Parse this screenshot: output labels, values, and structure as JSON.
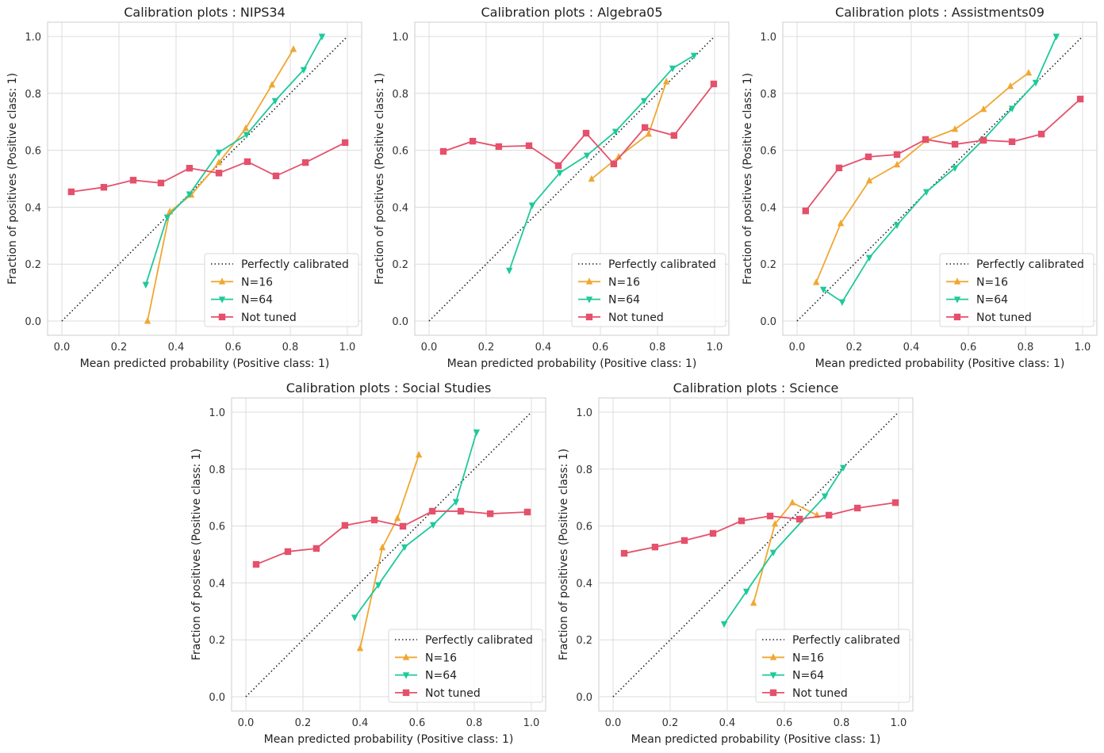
{
  "colors": {
    "perfect": "#222222",
    "n16": "#f0a732",
    "n64": "#1ec99b",
    "not_tuned": "#e5506b",
    "grid": "#dcdcdc",
    "frame": "#cccccc"
  },
  "chart_data": [
    {
      "type": "line",
      "title": "Calibration plots : NIPS34",
      "xlabel": "Mean predicted probability (Positive class: 1)",
      "ylabel": "Fraction of positives (Positive class: 1)",
      "xlim": [
        -0.05,
        1.05
      ],
      "ylim": [
        -0.05,
        1.05
      ],
      "xticks": [
        "0.0",
        "0.2",
        "0.4",
        "0.6",
        "0.8",
        "1.0"
      ],
      "yticks": [
        "0.0",
        "0.2",
        "0.4",
        "0.6",
        "0.8",
        "1.0"
      ],
      "grid": true,
      "legend": "lower right",
      "series": [
        {
          "name": "Perfectly calibrated",
          "style": "dotted",
          "x": [
            0,
            1
          ],
          "y": [
            0,
            1
          ]
        },
        {
          "name": "N=16",
          "marker": "triangle-up",
          "x": [
            0.3,
            0.378,
            0.453,
            0.55,
            0.644,
            0.736,
            0.811
          ],
          "y": [
            0.0,
            0.384,
            0.443,
            0.557,
            0.677,
            0.83,
            0.955
          ]
        },
        {
          "name": "N=64",
          "marker": "triangle-down",
          "x": [
            0.294,
            0.369,
            0.447,
            0.55,
            0.647,
            0.747,
            0.847,
            0.911
          ],
          "y": [
            0.128,
            0.365,
            0.446,
            0.593,
            0.655,
            0.774,
            0.883,
            1.0
          ]
        },
        {
          "name": "Not tuned",
          "marker": "square",
          "x": [
            0.033,
            0.147,
            0.25,
            0.347,
            0.447,
            0.55,
            0.65,
            0.75,
            0.853,
            0.992
          ],
          "y": [
            0.454,
            0.47,
            0.495,
            0.485,
            0.537,
            0.52,
            0.56,
            0.51,
            0.557,
            0.627
          ]
        }
      ]
    },
    {
      "type": "line",
      "title": "Calibration plots : Algebra05",
      "xlabel": "Mean predicted probability (Positive class: 1)",
      "ylabel": "Fraction of positives (Positive class: 1)",
      "xlim": [
        -0.05,
        1.05
      ],
      "ylim": [
        -0.05,
        1.05
      ],
      "xticks": [
        "0.0",
        "0.2",
        "0.4",
        "0.6",
        "0.8",
        "1.0"
      ],
      "yticks": [
        "0.0",
        "0.2",
        "0.4",
        "0.6",
        "0.8",
        "1.0"
      ],
      "grid": true,
      "legend": "lower right",
      "series": [
        {
          "name": "Perfectly calibrated",
          "style": "dotted",
          "x": [
            0,
            1
          ],
          "y": [
            0,
            1
          ]
        },
        {
          "name": "N=16",
          "marker": "triangle-up",
          "x": [
            0.569,
            0.664,
            0.769,
            0.831
          ],
          "y": [
            0.499,
            0.577,
            0.657,
            0.841
          ]
        },
        {
          "name": "N=64",
          "marker": "triangle-down",
          "x": [
            0.281,
            0.361,
            0.458,
            0.553,
            0.653,
            0.753,
            0.853,
            0.928
          ],
          "y": [
            0.178,
            0.407,
            0.521,
            0.582,
            0.666,
            0.774,
            0.888,
            0.933
          ]
        },
        {
          "name": "Not tuned",
          "marker": "square",
          "x": [
            0.05,
            0.153,
            0.244,
            0.35,
            0.453,
            0.55,
            0.647,
            0.756,
            0.858,
            0.997
          ],
          "y": [
            0.596,
            0.632,
            0.613,
            0.616,
            0.546,
            0.66,
            0.552,
            0.68,
            0.652,
            0.833
          ]
        }
      ]
    },
    {
      "type": "line",
      "title": "Calibration plots : Assistments09",
      "xlabel": "Mean predicted probability (Positive class: 1)",
      "ylabel": "Fraction of positives (Positive class: 1)",
      "xlim": [
        -0.05,
        1.05
      ],
      "ylim": [
        -0.05,
        1.05
      ],
      "xticks": [
        "0.0",
        "0.2",
        "0.4",
        "0.6",
        "0.8",
        "1.0"
      ],
      "yticks": [
        "0.0",
        "0.2",
        "0.4",
        "0.6",
        "0.8",
        "1.0"
      ],
      "grid": true,
      "legend": "lower right",
      "series": [
        {
          "name": "Perfectly calibrated",
          "style": "dotted",
          "x": [
            0,
            1
          ],
          "y": [
            0,
            1
          ]
        },
        {
          "name": "N=16",
          "marker": "triangle-up",
          "x": [
            0.067,
            0.153,
            0.253,
            0.35,
            0.453,
            0.553,
            0.653,
            0.747,
            0.811
          ],
          "y": [
            0.136,
            0.343,
            0.493,
            0.549,
            0.635,
            0.674,
            0.744,
            0.825,
            0.872
          ]
        },
        {
          "name": "N=64",
          "marker": "triangle-down",
          "x": [
            0.092,
            0.158,
            0.253,
            0.35,
            0.453,
            0.553,
            0.653,
            0.753,
            0.836,
            0.908
          ],
          "y": [
            0.111,
            0.067,
            0.223,
            0.337,
            0.454,
            0.538,
            0.638,
            0.747,
            0.838,
            1.0
          ]
        },
        {
          "name": "Not tuned",
          "marker": "square",
          "x": [
            0.03,
            0.147,
            0.25,
            0.35,
            0.45,
            0.553,
            0.653,
            0.753,
            0.856,
            0.992
          ],
          "y": [
            0.387,
            0.538,
            0.577,
            0.585,
            0.638,
            0.621,
            0.635,
            0.63,
            0.657,
            0.78
          ]
        }
      ]
    },
    {
      "type": "line",
      "title": "Calibration plots : Social Studies",
      "xlabel": "Mean predicted probability (Positive class: 1)",
      "ylabel": "Fraction of positives (Positive class: 1)",
      "xlim": [
        -0.05,
        1.05
      ],
      "ylim": [
        -0.05,
        1.05
      ],
      "xticks": [
        "0.0",
        "0.2",
        "0.4",
        "0.6",
        "0.8",
        "1.0"
      ],
      "yticks": [
        "0.0",
        "0.2",
        "0.4",
        "0.6",
        "0.8",
        "1.0"
      ],
      "grid": true,
      "legend": "lower right",
      "series": [
        {
          "name": "Perfectly calibrated",
          "style": "dotted",
          "x": [
            0,
            1
          ],
          "y": [
            0,
            1
          ]
        },
        {
          "name": "N=16",
          "marker": "triangle-up",
          "x": [
            0.4,
            0.478,
            0.531,
            0.606
          ],
          "y": [
            0.17,
            0.524,
            0.627,
            0.85
          ]
        },
        {
          "name": "N=64",
          "marker": "triangle-down",
          "x": [
            0.381,
            0.464,
            0.556,
            0.656,
            0.736,
            0.808
          ],
          "y": [
            0.279,
            0.393,
            0.526,
            0.604,
            0.685,
            0.93
          ]
        },
        {
          "name": "Not tuned",
          "marker": "square",
          "x": [
            0.036,
            0.147,
            0.247,
            0.347,
            0.45,
            0.55,
            0.653,
            0.753,
            0.856,
            0.986
          ],
          "y": [
            0.465,
            0.51,
            0.521,
            0.602,
            0.621,
            0.599,
            0.652,
            0.652,
            0.643,
            0.649
          ]
        }
      ]
    },
    {
      "type": "line",
      "title": "Calibration plots : Science",
      "xlabel": "Mean predicted probability (Positive class: 1)",
      "ylabel": "Fraction of positives (Positive class: 1)",
      "xlim": [
        -0.05,
        1.05
      ],
      "ylim": [
        -0.05,
        1.05
      ],
      "xticks": [
        "0.0",
        "0.2",
        "0.4",
        "0.6",
        "0.8",
        "1.0"
      ],
      "yticks": [
        "0.0",
        "0.2",
        "0.4",
        "0.6",
        "0.8",
        "1.0"
      ],
      "grid": true,
      "legend": "lower right",
      "series": [
        {
          "name": "Perfectly calibrated",
          "style": "dotted",
          "x": [
            0,
            1
          ],
          "y": [
            0,
            1
          ]
        },
        {
          "name": "N=16",
          "marker": "triangle-up",
          "x": [
            0.492,
            0.567,
            0.628,
            0.714
          ],
          "y": [
            0.329,
            0.607,
            0.682,
            0.638
          ]
        },
        {
          "name": "N=64",
          "marker": "triangle-down",
          "x": [
            0.389,
            0.467,
            0.561,
            0.742,
            0.806
          ],
          "y": [
            0.256,
            0.37,
            0.507,
            0.705,
            0.805
          ]
        },
        {
          "name": "Not tuned",
          "marker": "square",
          "x": [
            0.039,
            0.147,
            0.25,
            0.35,
            0.45,
            0.55,
            0.653,
            0.756,
            0.856,
            0.989
          ],
          "y": [
            0.504,
            0.526,
            0.549,
            0.574,
            0.618,
            0.635,
            0.624,
            0.638,
            0.663,
            0.682
          ]
        }
      ]
    }
  ]
}
